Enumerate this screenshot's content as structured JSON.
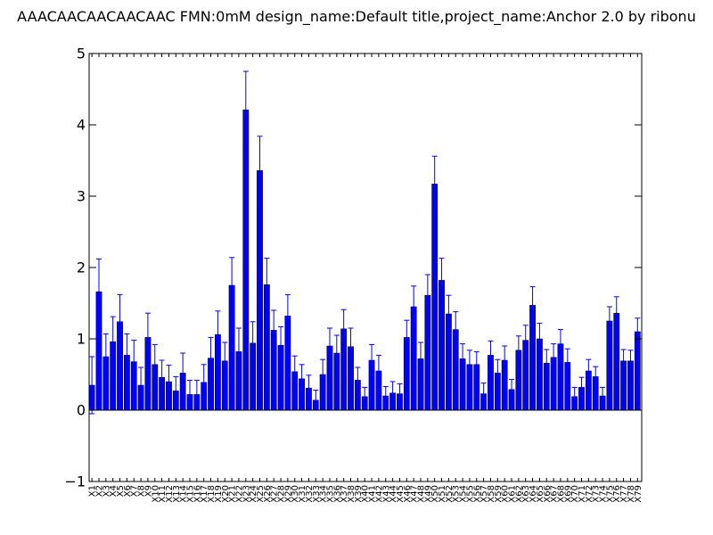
{
  "chart_data": {
    "type": "bar",
    "title": "AAACAACAACAACAAC  FMN:0mM  design_name:Default title,project_name:Anchor 2.0 by ribonu",
    "xlabel": "",
    "ylabel": "",
    "ylim": [
      -1,
      5
    ],
    "yticks": [
      "−1",
      "0",
      "1",
      "2",
      "3",
      "4",
      "5"
    ],
    "grid": false,
    "colors": {
      "bar": "#0000ff",
      "edge": "#000000",
      "error": "#0000ff",
      "axis": "#000000"
    },
    "categories": [
      "X1",
      "X2",
      "X3",
      "X4",
      "X5",
      "X6",
      "X7",
      "X8",
      "X9",
      "X10",
      "X11",
      "X12",
      "X13",
      "X14",
      "X15",
      "X16",
      "X17",
      "X18",
      "X19",
      "X20",
      "X21",
      "X22",
      "X23",
      "X24",
      "X25",
      "X26",
      "X27",
      "X28",
      "X29",
      "X30",
      "X31",
      "X32",
      "X33",
      "X34",
      "X35",
      "X36",
      "X37",
      "X38",
      "X39",
      "X40",
      "X41",
      "X42",
      "X43",
      "X44",
      "X45",
      "X46",
      "X47",
      "X48",
      "X49",
      "X50",
      "X51",
      "X52",
      "X53",
      "X54",
      "X55",
      "X56",
      "X57",
      "X58",
      "X59",
      "X60",
      "X61",
      "X62",
      "X63",
      "X64",
      "X65",
      "X66",
      "X67",
      "X68",
      "X69",
      "X70",
      "X71",
      "X72",
      "X73",
      "X74",
      "X75",
      "X76",
      "X77",
      "X78",
      "X79"
    ],
    "values": [
      0.35,
      1.66,
      0.75,
      0.96,
      1.24,
      0.77,
      0.68,
      0.35,
      1.02,
      0.64,
      0.46,
      0.4,
      0.27,
      0.52,
      0.22,
      0.22,
      0.39,
      0.73,
      1.06,
      0.69,
      1.75,
      0.82,
      4.21,
      0.94,
      3.36,
      1.76,
      1.12,
      0.91,
      1.32,
      0.54,
      0.44,
      0.31,
      0.14,
      0.5,
      0.9,
      0.8,
      1.14,
      0.89,
      0.42,
      0.19,
      0.7,
      0.55,
      0.2,
      0.24,
      0.23,
      1.02,
      1.45,
      0.72,
      1.61,
      3.17,
      1.82,
      1.35,
      1.13,
      0.72,
      0.64,
      0.64,
      0.23,
      0.77,
      0.52,
      0.7,
      0.29,
      0.84,
      0.98,
      1.47,
      1.0,
      0.66,
      0.74,
      0.93,
      0.67,
      0.19,
      0.32,
      0.55,
      0.47,
      0.2,
      1.25,
      1.36,
      0.69,
      0.69,
      1.1
    ],
    "errors": [
      0.4,
      0.46,
      0.32,
      0.35,
      0.38,
      0.3,
      0.3,
      0.25,
      0.34,
      0.28,
      0.24,
      0.23,
      0.2,
      0.28,
      0.2,
      0.2,
      0.25,
      0.29,
      0.33,
      0.26,
      0.39,
      0.33,
      0.54,
      0.3,
      0.48,
      0.37,
      0.28,
      0.26,
      0.3,
      0.22,
      0.2,
      0.18,
      0.14,
      0.21,
      0.25,
      0.25,
      0.27,
      0.26,
      0.18,
      0.13,
      0.22,
      0.22,
      0.13,
      0.16,
      0.14,
      0.24,
      0.29,
      0.23,
      0.29,
      0.39,
      0.31,
      0.26,
      0.25,
      0.21,
      0.2,
      0.18,
      0.15,
      0.2,
      0.19,
      0.2,
      0.14,
      0.2,
      0.21,
      0.26,
      0.22,
      0.19,
      0.19,
      0.2,
      0.19,
      0.13,
      0.14,
      0.16,
      0.14,
      0.12,
      0.2,
      0.23,
      0.16,
      0.15,
      0.19
    ]
  }
}
